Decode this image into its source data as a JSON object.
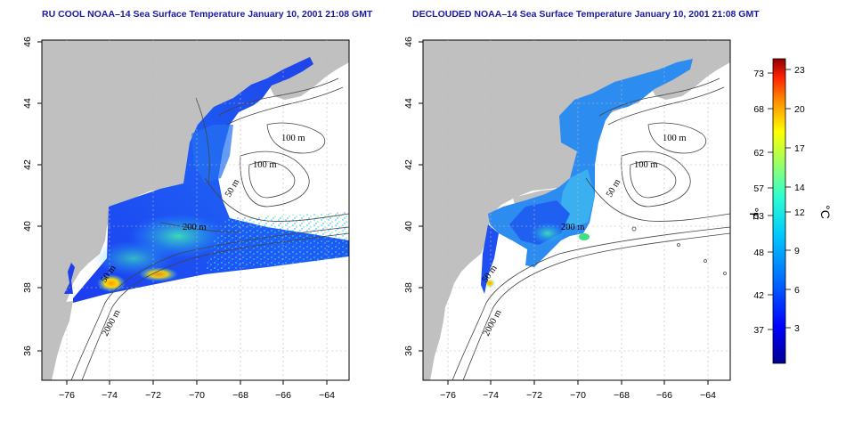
{
  "panels": [
    {
      "title": "RU COOL NOAA–14 Sea Surface Temperature January 10, 2001 21:08 GMT",
      "contour_labels": [
        "100 m",
        "100 m",
        "50 m",
        "200 m",
        "50 m",
        "2000 m"
      ]
    },
    {
      "title": "DECLOUDED NOAA–14 Sea Surface Temperature January 10, 2001 21:08 GMT",
      "contour_labels": [
        "100 m",
        "100 m",
        "50 m",
        "200 m",
        "50 m",
        "2000 m"
      ]
    }
  ],
  "axes": {
    "lon_ticks": [
      "−76",
      "−74",
      "−72",
      "−70",
      "−68",
      "−66",
      "−64"
    ],
    "lat_ticks": [
      "36",
      "38",
      "40",
      "42",
      "44",
      "46"
    ]
  },
  "colorbar": {
    "fahrenheit_labels": [
      "73",
      "68",
      "62",
      "57",
      "53",
      "48",
      "42",
      "37"
    ],
    "celsius_labels": [
      "23",
      "20",
      "17",
      "14",
      "12",
      "9",
      "6",
      "3"
    ],
    "fahrenheit_unit": "°F",
    "celsius_unit": "°C"
  },
  "colors": {
    "land": "#c0c0c0",
    "ocean_nodata": "#ffffff",
    "title_text": "#1a1aa8",
    "contour": "#444444",
    "grid": "#bbbbbb"
  }
}
